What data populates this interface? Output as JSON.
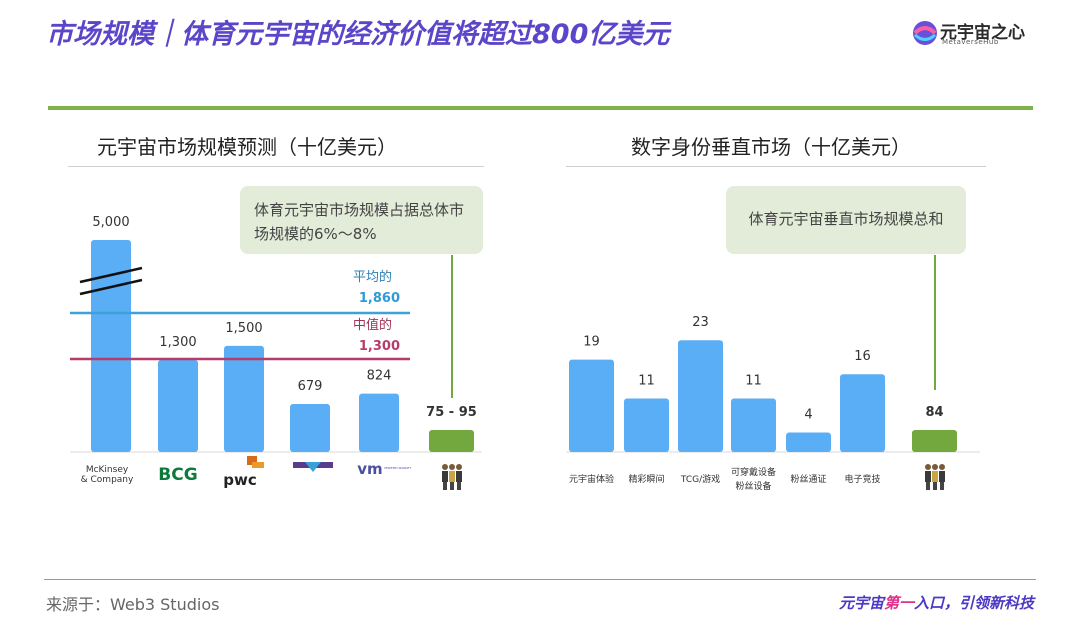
{
  "header": {
    "title": "市场规模｜体育元宇宙的经济价值将超过800亿美元",
    "logo_text": "元宇宙之心",
    "logo_sub": "MetaverseHub"
  },
  "footer": {
    "source": "来源于：Web3 Studios",
    "slogan_a": "元宇宙",
    "slogan_b": "第一",
    "slogan_c": "入口，引领新科技"
  },
  "colors": {
    "bar": "#5aaef5",
    "bar_green": "#72a83e",
    "average": "#3ea1d9",
    "median": "#b53d6b",
    "title": "#5b46c9"
  },
  "chart_data": [
    {
      "type": "bar",
      "title": "元宇宙市场规模预测（十亿美元）",
      "callout": "体育元宇宙市场规模占据总体市场规模的6%～8%",
      "categories": [
        "McKinsey & Company",
        "BCG",
        "pwc",
        "Metaverse Market Research",
        "Verified Market Research",
        "体育元宇宙"
      ],
      "values": [
        5000,
        1300,
        1500,
        679,
        824,
        85
      ],
      "labels": [
        "5,000",
        "1,300",
        "1,500",
        "679",
        "824",
        "75 - 95"
      ],
      "axis_break": true,
      "reference_lines": [
        {
          "name": "平均的",
          "value": 1860,
          "label": "1,860"
        },
        {
          "name": "中值的",
          "value": 1300,
          "label": "1,300"
        }
      ]
    },
    {
      "type": "bar",
      "title": "数字身份垂直市场（十亿美元）",
      "callout": "体育元宇宙垂直市场规模总和",
      "categories": [
        "元宇宙体验",
        "精彩瞬间",
        "TCG/游戏",
        "可穿戴设备 粉丝设备",
        "粉丝通证",
        "电子竞技",
        "体育元宇宙"
      ],
      "values": [
        19,
        11,
        23,
        11,
        4,
        16,
        84
      ],
      "labels": [
        "19",
        "11",
        "23",
        "11",
        "4",
        "16",
        "84"
      ]
    }
  ]
}
